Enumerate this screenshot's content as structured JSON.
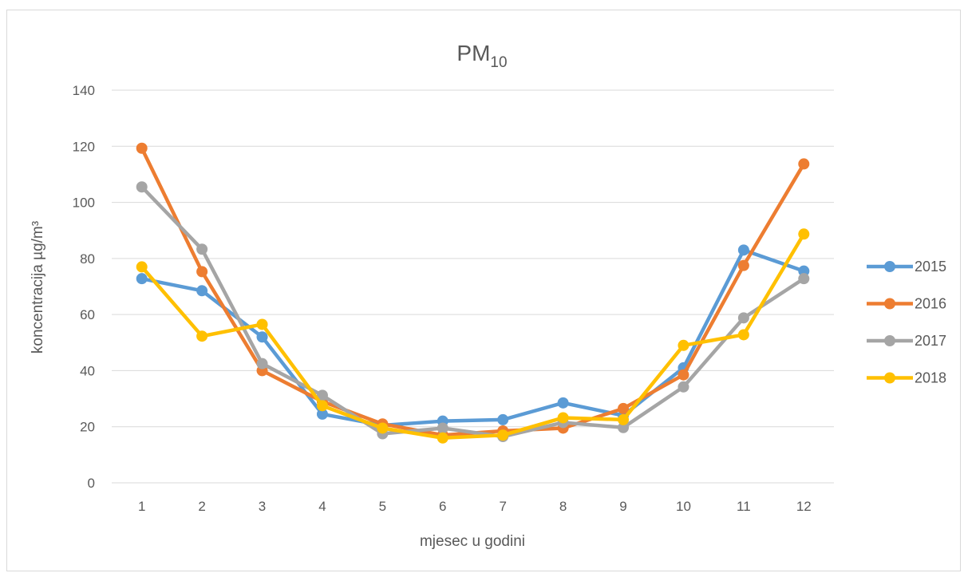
{
  "chart_data": {
    "type": "line",
    "title": "PM",
    "title_subscript": "10",
    "xlabel": "mjesec u godini",
    "ylabel": "koncentracija µg/m³",
    "categories": [
      "1",
      "2",
      "3",
      "4",
      "5",
      "6",
      "7",
      "8",
      "9",
      "10",
      "11",
      "12"
    ],
    "ylim": [
      0,
      140
    ],
    "yticks": [
      "0",
      "20",
      "40",
      "60",
      "80",
      "100",
      "120",
      "140"
    ],
    "grid": true,
    "legend_position": "right",
    "series": [
      {
        "name": "2015",
        "color": "#5b9bd5",
        "values": [
          72.8,
          68.5,
          52,
          24.5,
          20.5,
          22,
          22.5,
          28.5,
          24,
          41,
          83,
          75.5
        ]
      },
      {
        "name": "2016",
        "color": "#ed7d31",
        "values": [
          119.3,
          75.3,
          40,
          29,
          21,
          17,
          18.5,
          19.5,
          26.5,
          38.5,
          77.5,
          113.7
        ]
      },
      {
        "name": "2017",
        "color": "#a5a5a5",
        "values": [
          105.5,
          83.3,
          42.5,
          31.2,
          17.5,
          19.5,
          16.5,
          21.5,
          19.7,
          34.2,
          58.8,
          72.8
        ]
      },
      {
        "name": "2018",
        "color": "#ffc000",
        "values": [
          77,
          52.3,
          56.5,
          27.5,
          19.5,
          16,
          17,
          23.2,
          22.5,
          49,
          52.8,
          88.7
        ]
      }
    ]
  }
}
